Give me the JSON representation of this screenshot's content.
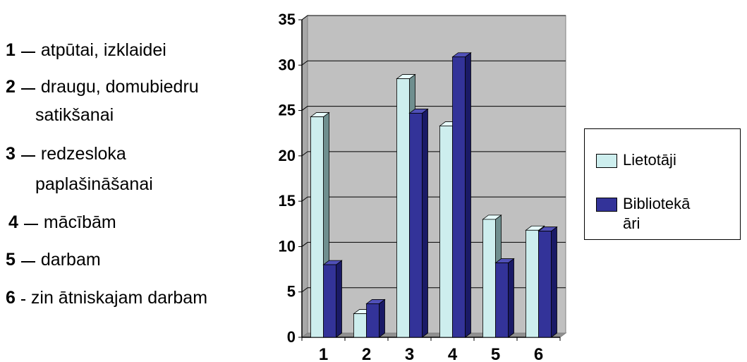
{
  "key": [
    {
      "num": "1",
      "text": "atpūtai, izklaidei",
      "cont": ""
    },
    {
      "num": "2",
      "text": "draugu, domubiedru",
      "cont": "satikšanai"
    },
    {
      "num": "3",
      "text": "redzesloka",
      "cont": "paplašināšanai"
    },
    {
      "num": "4",
      "text": "mācībām",
      "cont": ""
    },
    {
      "num": "5",
      "text": "darbam",
      "cont": ""
    },
    {
      "num": "6",
      "text": "zin ātniskajam darbam",
      "cont": ""
    }
  ],
  "colors": {
    "plot_bg": "#c0c0c0",
    "lietotaji": "#cdeeee",
    "bibliotekari": "#333399"
  },
  "chart_data": {
    "type": "bar",
    "categories": [
      "1",
      "2",
      "3",
      "4",
      "5",
      "6"
    ],
    "series": [
      {
        "name": "Lietotāji",
        "values": [
          24.3,
          2.6,
          28.5,
          23.3,
          13.0,
          11.8
        ]
      },
      {
        "name": "Bibliotekā\nāri",
        "values": [
          8.0,
          3.7,
          24.7,
          30.9,
          8.2,
          11.7
        ]
      }
    ],
    "ylim": [
      0,
      35
    ],
    "yticks": [
      "0",
      "5",
      "10",
      "15",
      "20",
      "25",
      "30",
      "35"
    ],
    "grid": true,
    "legend_position": "right"
  },
  "legend": {
    "lietotaji": "Lietotāji",
    "bibliotekari_line1": "Bibliotekā",
    "bibliotekari_line2": "āri"
  }
}
